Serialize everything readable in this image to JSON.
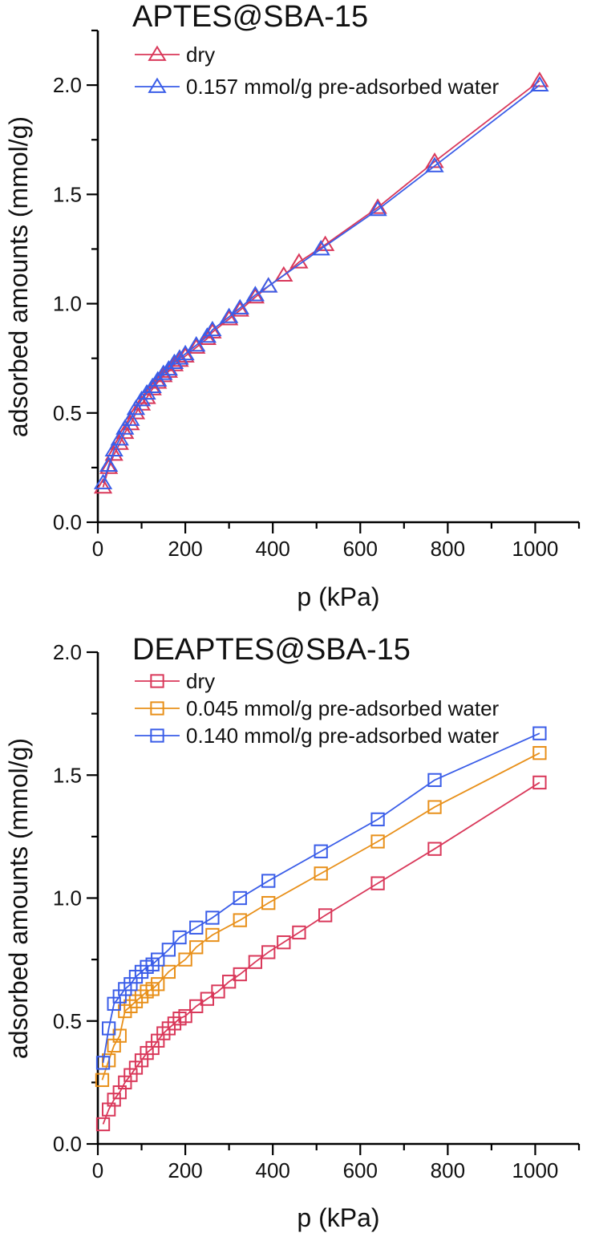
{
  "chart_data": [
    {
      "type": "line",
      "title": "APTES@SBA-15",
      "xlabel": "p (kPa)",
      "ylabel": "adsorbed amounts (mmol/g)",
      "xlim": [
        0,
        1100
      ],
      "ylim": [
        0,
        2.25
      ],
      "xticks": [
        "0",
        "200",
        "400",
        "600",
        "800",
        "1000"
      ],
      "yticks": [
        "0.0",
        "0.5",
        "1.0",
        "1.5",
        "2.0"
      ],
      "marker": "triangle",
      "legend_position": "top-left",
      "series": [
        {
          "name": "dry",
          "color": "#d9385a",
          "x": [
            12,
            25,
            37,
            50,
            62,
            75,
            87,
            100,
            112,
            125,
            137,
            150,
            162,
            175,
            187,
            200,
            225,
            250,
            262,
            300,
            325,
            360,
            390,
            425,
            460,
            520,
            640,
            770,
            1010
          ],
          "y": [
            0.16,
            0.25,
            0.31,
            0.36,
            0.41,
            0.45,
            0.5,
            0.54,
            0.57,
            0.61,
            0.64,
            0.67,
            0.69,
            0.72,
            0.74,
            0.76,
            0.8,
            0.84,
            0.87,
            0.93,
            0.97,
            1.03,
            1.08,
            1.13,
            1.19,
            1.27,
            1.44,
            1.65,
            2.02
          ]
        },
        {
          "name": "0.157 mmol/g pre-adsorbed water",
          "color": "#3a5de8",
          "x": [
            12,
            25,
            37,
            50,
            62,
            75,
            87,
            100,
            112,
            125,
            137,
            150,
            162,
            175,
            187,
            200,
            225,
            250,
            262,
            300,
            325,
            360,
            390,
            510,
            640,
            770,
            1010
          ],
          "y": [
            0.18,
            0.26,
            0.33,
            0.38,
            0.43,
            0.47,
            0.52,
            0.56,
            0.59,
            0.62,
            0.65,
            0.68,
            0.7,
            0.73,
            0.75,
            0.77,
            0.81,
            0.85,
            0.88,
            0.94,
            0.98,
            1.04,
            1.08,
            1.25,
            1.43,
            1.63,
            2.0
          ]
        }
      ]
    },
    {
      "type": "line",
      "title": "DEAPTES@SBA-15",
      "xlabel": "p (kPa)",
      "ylabel": "adsorbed amounts (mmol/g)",
      "xlim": [
        0,
        1100
      ],
      "ylim": [
        0,
        2.0
      ],
      "xticks": [
        "0",
        "200",
        "400",
        "600",
        "800",
        "1000"
      ],
      "yticks": [
        "0.0",
        "0.5",
        "1.0",
        "1.5",
        "2.0"
      ],
      "marker": "square",
      "legend_position": "top-left",
      "series": [
        {
          "name": "dry",
          "color": "#d9385a",
          "x": [
            12,
            25,
            37,
            50,
            62,
            75,
            87,
            100,
            112,
            125,
            137,
            150,
            162,
            175,
            187,
            200,
            225,
            250,
            275,
            300,
            325,
            360,
            390,
            425,
            460,
            520,
            640,
            770,
            1010
          ],
          "y": [
            0.08,
            0.14,
            0.18,
            0.21,
            0.25,
            0.28,
            0.31,
            0.34,
            0.37,
            0.39,
            0.42,
            0.45,
            0.47,
            0.49,
            0.51,
            0.52,
            0.56,
            0.59,
            0.62,
            0.66,
            0.69,
            0.74,
            0.78,
            0.82,
            0.86,
            0.93,
            1.06,
            1.2,
            1.47
          ]
        },
        {
          "name": "0.045 mmol/g pre-adsorbed water",
          "color": "#e8901a",
          "x": [
            10,
            25,
            37,
            50,
            62,
            75,
            87,
            100,
            112,
            125,
            137,
            162,
            200,
            225,
            262,
            325,
            390,
            510,
            640,
            770,
            1010
          ],
          "y": [
            0.26,
            0.34,
            0.4,
            0.44,
            0.54,
            0.56,
            0.58,
            0.6,
            0.62,
            0.63,
            0.65,
            0.7,
            0.75,
            0.8,
            0.85,
            0.91,
            0.98,
            1.1,
            1.23,
            1.37,
            1.59
          ]
        },
        {
          "name": "0.140 mmol/g pre-adsorbed water",
          "color": "#3a5de8",
          "x": [
            12,
            25,
            37,
            50,
            62,
            75,
            87,
            100,
            112,
            125,
            137,
            162,
            187,
            225,
            262,
            325,
            390,
            510,
            640,
            770,
            1010
          ],
          "y": [
            0.33,
            0.47,
            0.57,
            0.6,
            0.63,
            0.65,
            0.68,
            0.7,
            0.72,
            0.73,
            0.75,
            0.79,
            0.84,
            0.88,
            0.92,
            1.0,
            1.07,
            1.19,
            1.32,
            1.48,
            1.67
          ]
        }
      ]
    }
  ]
}
